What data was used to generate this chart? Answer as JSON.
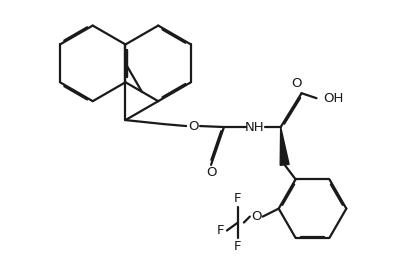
{
  "background_color": "#ffffff",
  "line_color": "#1a1a1a",
  "line_width": 1.6,
  "dbo": 0.013,
  "figsize": [
    4.0,
    2.68
  ],
  "dpi": 100,
  "xlim": [
    0,
    4.0
  ],
  "ylim": [
    0,
    2.68
  ]
}
